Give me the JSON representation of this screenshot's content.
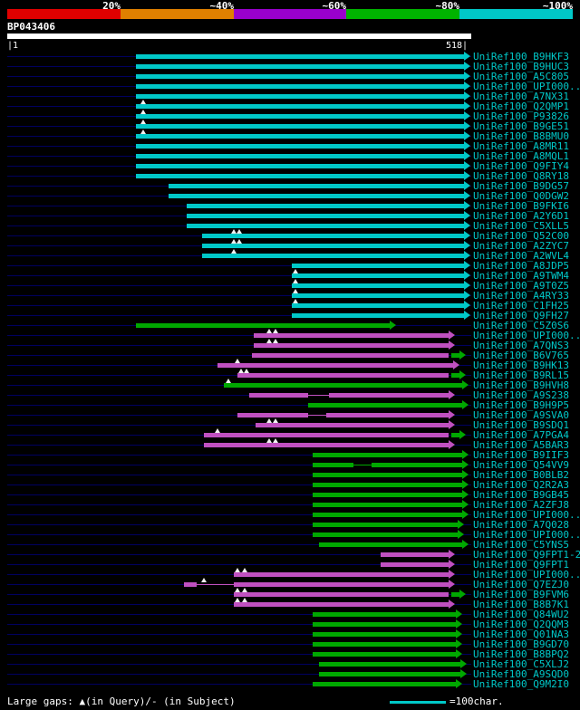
{
  "colors": {
    "cy": "#00c8c8",
    "gr": "#00a800",
    "mg": "#c050c0",
    "navy": "#000060",
    "white": "#ffffff",
    "label": "#00c8c8",
    "scale": [
      "#e00000",
      "#e08000",
      "#9900cc",
      "#00b400",
      "#00c8c8"
    ]
  },
  "scale_labels": [
    "20%",
    "~40%",
    "~60%",
    "~80%",
    "~100%"
  ],
  "query": {
    "id": "BP043406",
    "start_label": "|1",
    "end_label": "518|",
    "length": 518
  },
  "footer": {
    "gaps_legend": "Large gaps: ▲(in Query)/- (in Subject)",
    "unit_label": "=100char."
  },
  "chart_data": {
    "type": "bar",
    "subtype": "blast-alignment-overview",
    "orientation": "horizontal",
    "query_id": "BP043406",
    "query_length": 518,
    "x_axis": {
      "min": 1,
      "max": 518
    },
    "identity_scale": {
      "labels": [
        "20%",
        "~40%",
        "~60%",
        "~80%",
        "~100%"
      ],
      "colors": [
        "#e00000",
        "#e08000",
        "#9900cc",
        "#00b400",
        "#00c8c8"
      ]
    },
    "rows": [
      {
        "label": "UniRef100_B9HKF3",
        "segs": [
          [
            "cy",
            144,
            510
          ]
        ],
        "gaps": []
      },
      {
        "label": "UniRef100_B9HUC3",
        "segs": [
          [
            "cy",
            144,
            510
          ]
        ],
        "gaps": []
      },
      {
        "label": "UniRef100_A5C805",
        "segs": [
          [
            "cy",
            144,
            510
          ]
        ],
        "gaps": []
      },
      {
        "label": "UniRef100_UPI000...",
        "segs": [
          [
            "cy",
            144,
            510
          ]
        ],
        "gaps": []
      },
      {
        "label": "UniRef100_A7NX31",
        "segs": [
          [
            "cy",
            144,
            510
          ]
        ],
        "gaps": []
      },
      {
        "label": "UniRef100_Q2QMP1",
        "segs": [
          [
            "cy",
            144,
            510
          ]
        ],
        "gaps": [
          152
        ]
      },
      {
        "label": "UniRef100_P93826",
        "segs": [
          [
            "cy",
            144,
            510
          ]
        ],
        "gaps": [
          152
        ]
      },
      {
        "label": "UniRef100_B9GE51",
        "segs": [
          [
            "cy",
            144,
            510
          ]
        ],
        "gaps": [
          152
        ]
      },
      {
        "label": "UniRef100_B8BMU0",
        "segs": [
          [
            "cy",
            144,
            510
          ]
        ],
        "gaps": [
          152
        ]
      },
      {
        "label": "UniRef100_A8MR11",
        "segs": [
          [
            "cy",
            144,
            510
          ]
        ],
        "gaps": []
      },
      {
        "label": "UniRef100_A8MQL1",
        "segs": [
          [
            "cy",
            144,
            510
          ]
        ],
        "gaps": []
      },
      {
        "label": "UniRef100_Q9FIY4",
        "segs": [
          [
            "cy",
            144,
            510
          ]
        ],
        "gaps": []
      },
      {
        "label": "UniRef100_Q8RY18",
        "segs": [
          [
            "cy",
            144,
            510
          ]
        ],
        "gaps": []
      },
      {
        "label": "UniRef100_B9DG57",
        "segs": [
          [
            "cy",
            180,
            510
          ]
        ],
        "gaps": []
      },
      {
        "label": "UniRef100_Q0DGW2",
        "segs": [
          [
            "cy",
            180,
            510
          ]
        ],
        "gaps": []
      },
      {
        "label": "UniRef100_B9FKI6",
        "segs": [
          [
            "cy",
            200,
            510
          ]
        ],
        "gaps": []
      },
      {
        "label": "UniRef100_A2Y6D1",
        "segs": [
          [
            "cy",
            200,
            510
          ]
        ],
        "gaps": []
      },
      {
        "label": "UniRef100_C5XLL5",
        "segs": [
          [
            "cy",
            200,
            510
          ]
        ],
        "gaps": []
      },
      {
        "label": "UniRef100_Q52C00",
        "segs": [
          [
            "cy",
            218,
            510
          ]
        ],
        "gaps": [
          253,
          259
        ]
      },
      {
        "label": "UniRef100_A2ZYC7",
        "segs": [
          [
            "cy",
            218,
            510
          ]
        ],
        "gaps": [
          253,
          259
        ]
      },
      {
        "label": "UniRef100_A2WVL4",
        "segs": [
          [
            "cy",
            218,
            510
          ]
        ],
        "gaps": [
          253
        ]
      },
      {
        "label": "UniRef100_A8JDP5",
        "segs": [
          [
            "cy",
            318,
            510
          ]
        ],
        "gaps": []
      },
      {
        "label": "UniRef100_A9TWM4",
        "segs": [
          [
            "cy",
            318,
            510
          ]
        ],
        "gaps": [
          322
        ]
      },
      {
        "label": "UniRef100_A9T0Z5",
        "segs": [
          [
            "cy",
            318,
            510
          ]
        ],
        "gaps": [
          322
        ]
      },
      {
        "label": "UniRef100_A4RY33",
        "segs": [
          [
            "cy",
            318,
            510
          ]
        ],
        "gaps": [
          322
        ]
      },
      {
        "label": "UniRef100_C1FH25",
        "segs": [
          [
            "cy",
            318,
            510
          ]
        ],
        "gaps": [
          322
        ]
      },
      {
        "label": "UniRef100_Q9FH27",
        "segs": [
          [
            "cy",
            318,
            510
          ]
        ],
        "gaps": []
      },
      {
        "label": "UniRef100_C5Z0S6",
        "segs": [
          [
            "gr",
            144,
            427
          ]
        ],
        "gaps": []
      },
      {
        "label": "UniRef100_UPI000...",
        "segs": [
          [
            "mg",
            275,
            493
          ]
        ],
        "gaps": [
          292,
          299
        ]
      },
      {
        "label": "UniRef100_A7QNS3",
        "segs": [
          [
            "mg",
            275,
            493
          ]
        ],
        "gaps": [
          292,
          299
        ]
      },
      {
        "label": "UniRef100_B6V765",
        "segs": [
          [
            "mg",
            273,
            493
          ],
          [
            "gr",
            496,
            505
          ]
        ],
        "gaps": []
      },
      {
        "label": "UniRef100_B9HK13",
        "segs": [
          [
            "mg",
            235,
            498
          ]
        ],
        "gaps": [
          257
        ]
      },
      {
        "label": "UniRef100_B9RL15",
        "segs": [
          [
            "mg",
            257,
            493
          ],
          [
            "gr",
            496,
            505
          ]
        ],
        "gaps": [
          261,
          267
        ]
      },
      {
        "label": "UniRef100_B9HVH8",
        "segs": [
          [
            "gr",
            242,
            508
          ]
        ],
        "gaps": [
          247
        ]
      },
      {
        "label": "UniRef100_A9S238",
        "segs": [
          [
            "mg",
            270,
            336
          ],
          [
            "mg",
            336,
            359,
            "line"
          ],
          [
            "mg",
            359,
            493
          ]
        ],
        "gaps": []
      },
      {
        "label": "UniRef100_B9H9P5",
        "segs": [
          [
            "gr",
            336,
            508
          ]
        ],
        "gaps": []
      },
      {
        "label": "UniRef100_A9SVA0",
        "segs": [
          [
            "mg",
            257,
            336
          ],
          [
            "mg",
            336,
            356,
            "line"
          ],
          [
            "mg",
            356,
            493
          ]
        ],
        "gaps": []
      },
      {
        "label": "UniRef100_B9SDQ1",
        "segs": [
          [
            "mg",
            277,
            493
          ]
        ],
        "gaps": [
          292,
          299
        ]
      },
      {
        "label": "UniRef100_A7PGA4",
        "segs": [
          [
            "mg",
            220,
            493
          ],
          [
            "gr",
            496,
            505
          ]
        ],
        "gaps": [
          235
        ]
      },
      {
        "label": "UniRef100_A5BAR3",
        "segs": [
          [
            "mg",
            220,
            493
          ]
        ],
        "gaps": [
          292,
          299
        ]
      },
      {
        "label": "UniRef100_B9IIF3",
        "segs": [
          [
            "gr",
            341,
            508
          ]
        ],
        "gaps": []
      },
      {
        "label": "UniRef100_Q54VV9",
        "segs": [
          [
            "gr",
            341,
            386
          ],
          [
            "gr",
            386,
            407,
            "line"
          ],
          [
            "gr",
            407,
            508
          ]
        ],
        "gaps": []
      },
      {
        "label": "UniRef100_B0BLB2",
        "segs": [
          [
            "gr",
            341,
            508
          ]
        ],
        "gaps": []
      },
      {
        "label": "UniRef100_Q2R2A3",
        "segs": [
          [
            "gr",
            341,
            508
          ]
        ],
        "gaps": []
      },
      {
        "label": "UniRef100_B9GB45",
        "segs": [
          [
            "gr",
            341,
            508
          ]
        ],
        "gaps": []
      },
      {
        "label": "UniRef100_A2ZFJ8",
        "segs": [
          [
            "gr",
            341,
            508
          ]
        ],
        "gaps": []
      },
      {
        "label": "UniRef100_UPI000...",
        "segs": [
          [
            "gr",
            341,
            508
          ]
        ],
        "gaps": []
      },
      {
        "label": "UniRef100_A7Q028",
        "segs": [
          [
            "gr",
            341,
            503
          ]
        ],
        "gaps": []
      },
      {
        "label": "UniRef100_UPI000...",
        "segs": [
          [
            "gr",
            341,
            503
          ]
        ],
        "gaps": []
      },
      {
        "label": "UniRef100_C5YNS5",
        "segs": [
          [
            "gr",
            348,
            508
          ]
        ],
        "gaps": []
      },
      {
        "label": "UniRef100_Q9FPT1-2",
        "segs": [
          [
            "mg",
            417,
            493
          ]
        ],
        "gaps": []
      },
      {
        "label": "UniRef100_Q9FPT1",
        "segs": [
          [
            "mg",
            417,
            493
          ]
        ],
        "gaps": []
      },
      {
        "label": "UniRef100_UPI000...",
        "segs": [
          [
            "mg",
            253,
            493
          ]
        ],
        "gaps": [
          257,
          265
        ]
      },
      {
        "label": "UniRef100_Q7EZJ0",
        "segs": [
          [
            "mg",
            197,
            211
          ],
          [
            "mg",
            211,
            253,
            "line"
          ],
          [
            "mg",
            253,
            493
          ]
        ],
        "gaps": [
          220
        ]
      },
      {
        "label": "UniRef100_B9FVM6",
        "segs": [
          [
            "mg",
            253,
            493
          ],
          [
            "gr",
            496,
            505
          ]
        ],
        "gaps": [
          257,
          265
        ]
      },
      {
        "label": "UniRef100_B8B7K1",
        "segs": [
          [
            "mg",
            253,
            493
          ]
        ],
        "gaps": [
          257,
          265
        ]
      },
      {
        "label": "UniRef100_Q84WU2",
        "segs": [
          [
            "gr",
            341,
            501
          ]
        ],
        "gaps": []
      },
      {
        "label": "UniRef100_Q2QQM3",
        "segs": [
          [
            "gr",
            341,
            501
          ]
        ],
        "gaps": []
      },
      {
        "label": "UniRef100_Q01NA3",
        "segs": [
          [
            "gr",
            341,
            501
          ]
        ],
        "gaps": []
      },
      {
        "label": "UniRef100_B9GD70",
        "segs": [
          [
            "gr",
            341,
            501
          ]
        ],
        "gaps": []
      },
      {
        "label": "UniRef100_B8BPQ2",
        "segs": [
          [
            "gr",
            341,
            501
          ]
        ],
        "gaps": []
      },
      {
        "label": "UniRef100_C5XLJ2",
        "segs": [
          [
            "gr",
            348,
            506
          ]
        ],
        "gaps": []
      },
      {
        "label": "UniRef100_A9SQD0",
        "segs": [
          [
            "gr",
            348,
            506
          ]
        ],
        "gaps": []
      },
      {
        "label": "UniRef100_Q9M2I0",
        "segs": [
          [
            "gr",
            341,
            501
          ]
        ],
        "gaps": []
      }
    ]
  }
}
